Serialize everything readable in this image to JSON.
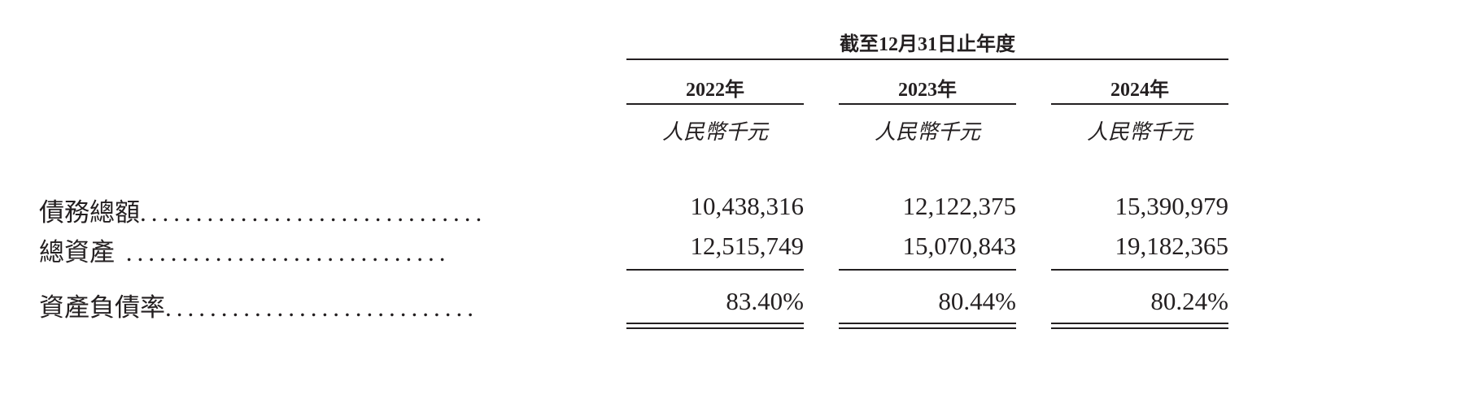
{
  "header": "截至12月31日止年度",
  "columns": [
    {
      "year": "2022年",
      "unit": "人民幣千元"
    },
    {
      "year": "2023年",
      "unit": "人民幣千元"
    },
    {
      "year": "2024年",
      "unit": "人民幣千元"
    }
  ],
  "rows": [
    {
      "label": "債務總額",
      "leader": "...............................",
      "values": [
        "10,438,316",
        "12,122,375",
        "15,390,979"
      ]
    },
    {
      "label": "總資產",
      "leader": " .............................",
      "values": [
        "12,515,749",
        "15,070,843",
        "19,182,365"
      ]
    },
    {
      "label": "資產負債率",
      "leader": "............................",
      "values": [
        "83.40%",
        "80.44%",
        "80.24%"
      ]
    }
  ]
}
